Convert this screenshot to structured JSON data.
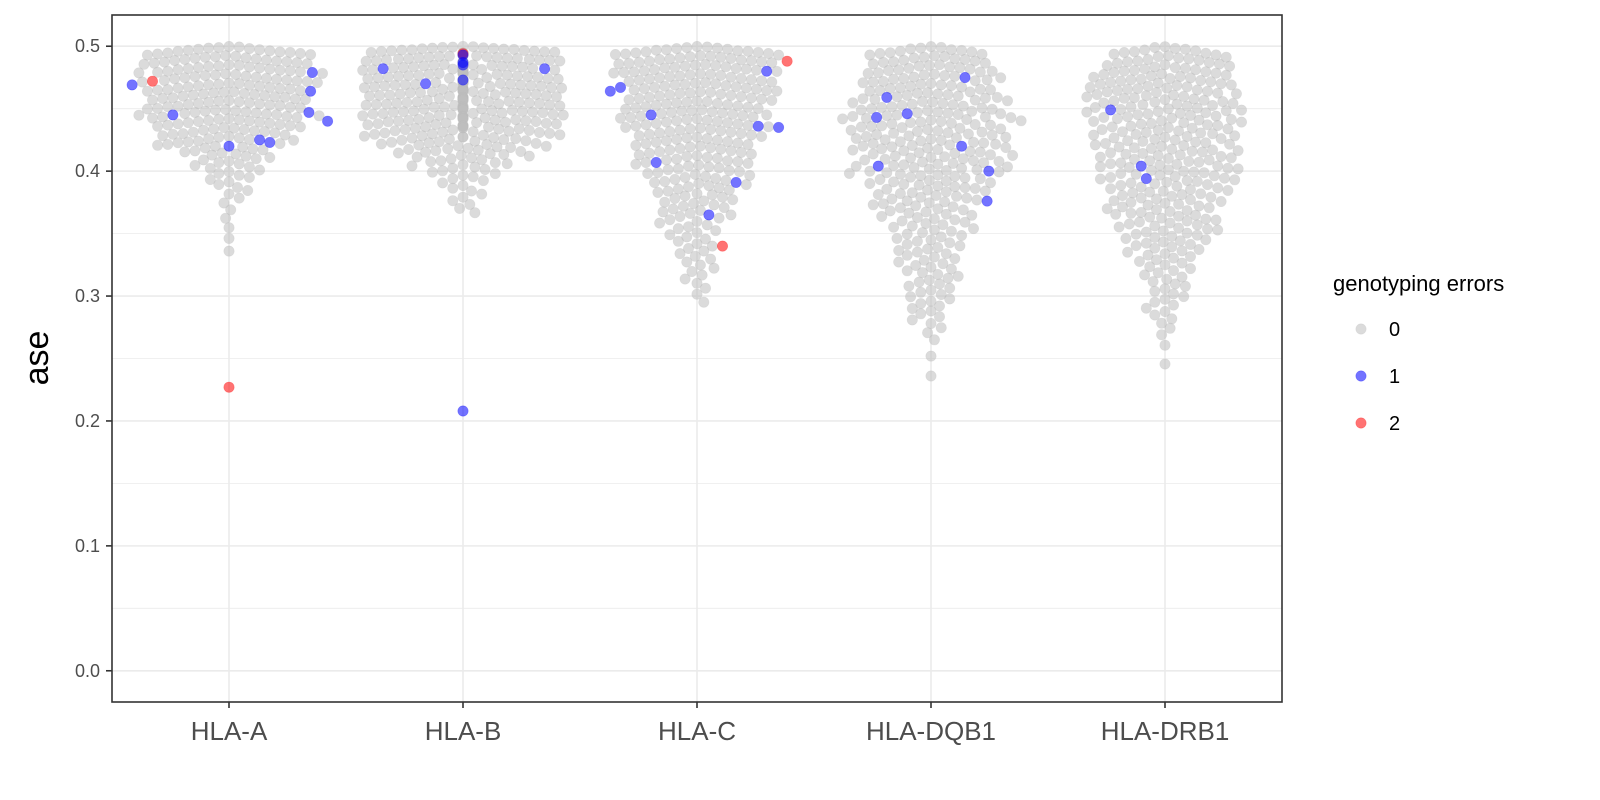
{
  "chart_data": {
    "type": "scatter",
    "subtype": "beeswarm",
    "title": "",
    "xlabel": "",
    "ylabel": "ase",
    "ylim": [
      -0.025,
      0.525
    ],
    "yticks": [
      0.0,
      0.1,
      0.2,
      0.3,
      0.4,
      0.5
    ],
    "ytick_labels": [
      "0.0",
      "0.1",
      "0.2",
      "0.3",
      "0.4",
      "0.5"
    ],
    "grid": true,
    "categories": [
      "HLA-A",
      "HLA-B",
      "HLA-C",
      "HLA-DQB1",
      "HLA-DRB1"
    ],
    "legend": {
      "title": "genotyping errors",
      "placement": "right",
      "entries": [
        {
          "label": "0",
          "color": "#bebebe"
        },
        {
          "label": "1",
          "color": "#0000ff"
        },
        {
          "label": "2",
          "color": "#ff0000"
        }
      ]
    },
    "series": [
      {
        "category": "HLA-A",
        "n_points": 210,
        "density": [
          [
            0.5,
            30
          ],
          [
            0.47,
            30
          ],
          [
            0.44,
            28
          ],
          [
            0.41,
            13
          ],
          [
            0.39,
            6
          ],
          [
            0.37,
            2
          ],
          [
            0.33,
            1
          ]
        ],
        "range": [
          0.33,
          0.5
        ],
        "highlighted": [
          {
            "value": 0.472,
            "errors": 2
          },
          {
            "value": 0.227,
            "errors": 2
          },
          {
            "value": 0.479,
            "errors": 1
          },
          {
            "value": 0.469,
            "errors": 1
          },
          {
            "value": 0.464,
            "errors": 1
          },
          {
            "value": 0.447,
            "errors": 1
          },
          {
            "value": 0.445,
            "errors": 1
          },
          {
            "value": 0.44,
            "errors": 1
          },
          {
            "value": 0.425,
            "errors": 1
          },
          {
            "value": 0.423,
            "errors": 1
          },
          {
            "value": 0.42,
            "errors": 1
          }
        ]
      },
      {
        "category": "HLA-B",
        "n_points": 330,
        "density": [
          [
            0.5,
            38
          ],
          [
            0.47,
            42
          ],
          [
            0.44,
            36
          ],
          [
            0.41,
            14
          ],
          [
            0.39,
            5
          ],
          [
            0.37,
            3
          ]
        ],
        "range": [
          0.365,
          0.5
        ],
        "highlighted": [
          {
            "value": 0.494,
            "errors": 2
          },
          {
            "value": 0.493,
            "errors": 1
          },
          {
            "value": 0.487,
            "errors": 1
          },
          {
            "value": 0.485,
            "errors": 1
          },
          {
            "value": 0.482,
            "errors": 1
          },
          {
            "value": 0.482,
            "errors": 1
          },
          {
            "value": 0.473,
            "errors": 1
          },
          {
            "value": 0.47,
            "errors": 1
          },
          {
            "value": 0.208,
            "errors": 1
          }
        ]
      },
      {
        "category": "HLA-C",
        "n_points": 260,
        "density": [
          [
            0.5,
            32
          ],
          [
            0.47,
            28
          ],
          [
            0.44,
            26
          ],
          [
            0.41,
            20
          ],
          [
            0.38,
            14
          ],
          [
            0.35,
            8
          ],
          [
            0.32,
            5
          ],
          [
            0.29,
            1
          ]
        ],
        "range": [
          0.29,
          0.5
        ],
        "highlighted": [
          {
            "value": 0.488,
            "errors": 2
          },
          {
            "value": 0.34,
            "errors": 2
          },
          {
            "value": 0.48,
            "errors": 1
          },
          {
            "value": 0.467,
            "errors": 1
          },
          {
            "value": 0.464,
            "errors": 1
          },
          {
            "value": 0.445,
            "errors": 1
          },
          {
            "value": 0.436,
            "errors": 1
          },
          {
            "value": 0.435,
            "errors": 1
          },
          {
            "value": 0.407,
            "errors": 1
          },
          {
            "value": 0.391,
            "errors": 1
          },
          {
            "value": 0.365,
            "errors": 1
          }
        ]
      },
      {
        "category": "HLA-DQB1",
        "n_points": 300,
        "density": [
          [
            0.5,
            26
          ],
          [
            0.47,
            28
          ],
          [
            0.44,
            32
          ],
          [
            0.41,
            30
          ],
          [
            0.38,
            22
          ],
          [
            0.35,
            14
          ],
          [
            0.32,
            11
          ],
          [
            0.29,
            8
          ],
          [
            0.26,
            1
          ],
          [
            0.23,
            1
          ]
        ],
        "range": [
          0.228,
          0.5
        ],
        "highlighted": [
          {
            "value": 0.475,
            "errors": 1
          },
          {
            "value": 0.459,
            "errors": 1
          },
          {
            "value": 0.446,
            "errors": 1
          },
          {
            "value": 0.443,
            "errors": 1
          },
          {
            "value": 0.42,
            "errors": 1
          },
          {
            "value": 0.404,
            "errors": 1
          },
          {
            "value": 0.4,
            "errors": 1
          },
          {
            "value": 0.376,
            "errors": 1
          }
        ]
      },
      {
        "category": "HLA-DRB1",
        "n_points": 300,
        "density": [
          [
            0.5,
            22
          ],
          [
            0.47,
            30
          ],
          [
            0.44,
            28
          ],
          [
            0.41,
            26
          ],
          [
            0.38,
            22
          ],
          [
            0.35,
            18
          ],
          [
            0.32,
            9
          ],
          [
            0.29,
            6
          ],
          [
            0.26,
            1
          ],
          [
            0.24,
            1
          ]
        ],
        "range": [
          0.238,
          0.5
        ],
        "highlighted": [
          {
            "value": 0.449,
            "errors": 1
          },
          {
            "value": 0.404,
            "errors": 1
          },
          {
            "value": 0.394,
            "errors": 1
          }
        ]
      }
    ]
  }
}
